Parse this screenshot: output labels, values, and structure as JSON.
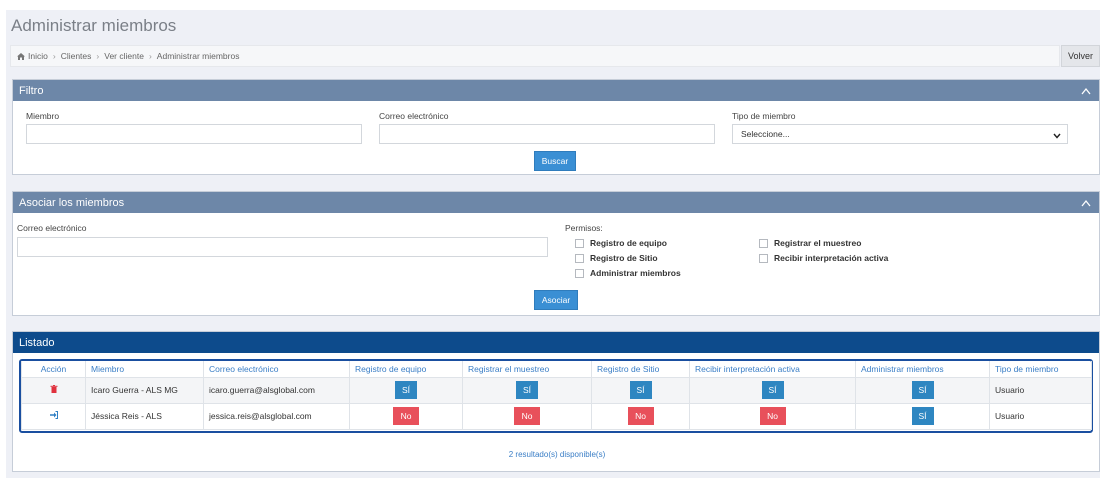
{
  "page": {
    "title": "Administrar miembros"
  },
  "breadcrumb": {
    "items": [
      "Inicio",
      "Clientes",
      "Ver cliente",
      "Administrar miembros"
    ]
  },
  "actions": {
    "back_label": "Volver"
  },
  "filter": {
    "title": "Filtro",
    "member_label": "Miembro",
    "member_value": "",
    "email_label": "Correo electrónico",
    "email_value": "",
    "type_label": "Tipo de miembro",
    "type_selected": "Seleccione...",
    "search_label": "Buscar"
  },
  "associate": {
    "title": "Asociar los miembros",
    "email_label": "Correo electrónico",
    "email_value": "",
    "permissions_label": "Permisos:",
    "permissions": [
      {
        "label": "Registro de equipo",
        "checked": false
      },
      {
        "label": "Registrar el muestreo",
        "checked": false
      },
      {
        "label": "Registro de Sitio",
        "checked": false
      },
      {
        "label": "Recibir interpretación activa",
        "checked": false
      },
      {
        "label": "Administrar miembros",
        "checked": false
      }
    ],
    "submit_label": "Asociar"
  },
  "listing": {
    "title": "Listado",
    "columns": [
      "Acción",
      "Miembro",
      "Correo electrónico",
      "Registro de equipo",
      "Registrar el muestreo",
      "Registro de Sitio",
      "Recibir interpretación activa",
      "Administrar miembros",
      "Tipo de miembro"
    ],
    "rows": [
      {
        "action_icon": "trash-icon",
        "member": "Icaro Guerra - ALS MG",
        "email": "icaro.guerra@alsglobal.com",
        "equipo": "SÍ",
        "muestreo": "SÍ",
        "sitio": "SÍ",
        "interpretacion": "SÍ",
        "administrar": "SÍ",
        "tipo": "Usuario"
      },
      {
        "action_icon": "sign-in-icon",
        "member": "Jéssica Reis - ALS",
        "email": "jessica.reis@alsglobal.com",
        "equipo": "No",
        "muestreo": "No",
        "sitio": "No",
        "interpretacion": "No",
        "administrar": "SÍ",
        "tipo": "Usuario"
      }
    ],
    "result_text": "2 resultado(s) disponible(s)"
  },
  "colors": {
    "panel_header": "#6d87a8",
    "listing_header": "#0d4b8c",
    "primary_button": "#3a8fd4",
    "yes_tag": "#2e86c1",
    "no_tag": "#e8505b",
    "link_text": "#3a7ec6"
  }
}
